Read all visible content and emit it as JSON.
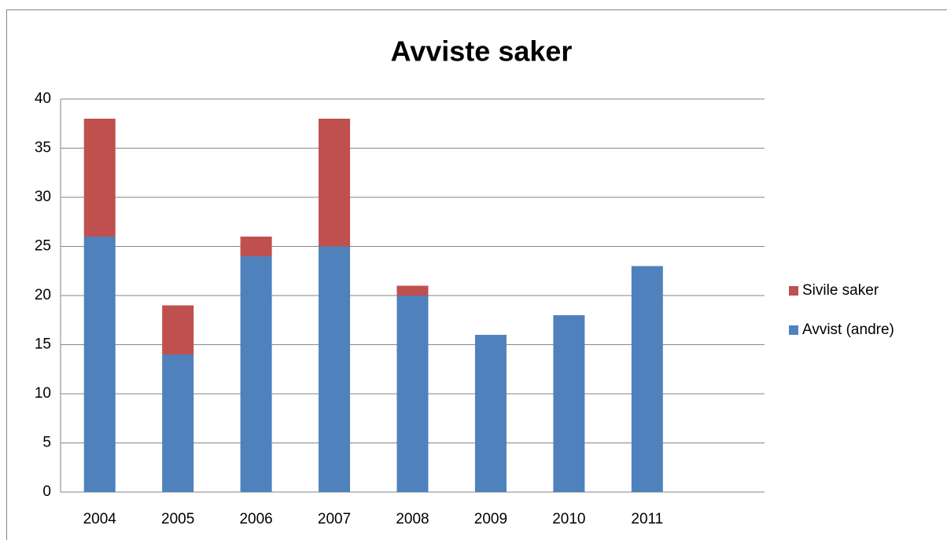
{
  "chart_data": {
    "type": "stacked-bar",
    "title": "Avviste saker",
    "categories": [
      "2004",
      "2005",
      "2006",
      "2007",
      "2008",
      "2009",
      "2010",
      "2011",
      null
    ],
    "series": [
      {
        "name": "Avvist (andre)",
        "color": "#4f81bd",
        "values": [
          26,
          14,
          24,
          25,
          20,
          16,
          18,
          23,
          null
        ]
      },
      {
        "name": "Sivile saker",
        "color": "#c0504d",
        "values": [
          12,
          5,
          2,
          13,
          1,
          0,
          0,
          0,
          null
        ]
      }
    ],
    "ylim": [
      0,
      40
    ],
    "yticks": [
      0,
      5,
      10,
      15,
      20,
      25,
      30,
      35,
      40
    ],
    "grid": true,
    "legend": "right"
  }
}
